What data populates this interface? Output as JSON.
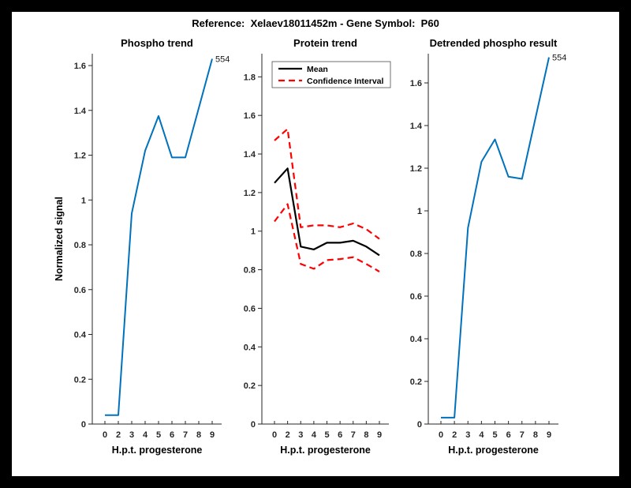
{
  "figure": {
    "title": "Reference:  Xelaev18011452m - Gene Symbol:  P60",
    "border_color": "#000000",
    "background_color": "#ffffff"
  },
  "colors": {
    "matlab_blue": "#0072BD",
    "ci_red": "#FF0000",
    "mean_black": "#000000",
    "axis_gray": "#262626"
  },
  "chart_data": [
    {
      "type": "line",
      "title": "Phospho trend",
      "xlabel": "H.p.t. progesterone",
      "ylabel": "Normalized signal",
      "x_ticklabels": [
        "0",
        "2",
        "3",
        "4",
        "5",
        "6",
        "7",
        "8",
        "9"
      ],
      "y_ticks": [
        0,
        0.2,
        0.4,
        0.6,
        0.8,
        1,
        1.2,
        1.4,
        1.6
      ],
      "y_tick_labels": [
        "0",
        "0.2",
        "0.4",
        "0.6",
        "0.8",
        "1",
        "1.2",
        "1.4",
        "1.6"
      ],
      "ylim": [
        0,
        1.653
      ],
      "grid": false,
      "annotation": {
        "text": "554",
        "at_last_point": true
      },
      "series": [
        {
          "name": "phospho-signal",
          "color": "#0072BD",
          "style": "solid",
          "width": 2,
          "values": [
            0.04,
            0.04,
            0.94,
            1.22,
            1.375,
            1.19,
            1.19,
            1.41,
            1.63
          ]
        }
      ]
    },
    {
      "type": "line",
      "title": "Protein trend",
      "xlabel": "H.p.t. progesterone",
      "ylabel": "",
      "x_ticklabels": [
        "0",
        "2",
        "3",
        "4",
        "5",
        "6",
        "7",
        "8",
        "9"
      ],
      "y_ticks": [
        0,
        0.2,
        0.4,
        0.6,
        0.8,
        1,
        1.2,
        1.4,
        1.6,
        1.8
      ],
      "y_tick_labels": [
        "0",
        "0.2",
        "0.4",
        "0.6",
        "0.8",
        "1",
        "1.2",
        "1.4",
        "1.6",
        "1.8"
      ],
      "ylim": [
        0,
        1.92
      ],
      "grid": false,
      "legend": {
        "position": "top-left",
        "entries": [
          {
            "label": "Mean",
            "color": "#000000",
            "style": "solid"
          },
          {
            "label": "Confidence Interval",
            "color": "#FF0000",
            "style": "dashed"
          }
        ]
      },
      "series": [
        {
          "name": "ci-upper",
          "color": "#FF0000",
          "style": "dashed",
          "width": 2.2,
          "values": [
            1.47,
            1.53,
            1.02,
            1.03,
            1.03,
            1.02,
            1.04,
            1.01,
            0.96
          ]
        },
        {
          "name": "ci-lower",
          "color": "#FF0000",
          "style": "dashed",
          "width": 2.2,
          "values": [
            1.05,
            1.14,
            0.83,
            0.805,
            0.85,
            0.855,
            0.865,
            0.83,
            0.79
          ]
        },
        {
          "name": "mean",
          "color": "#000000",
          "style": "solid",
          "width": 2.2,
          "values": [
            1.25,
            1.325,
            0.92,
            0.905,
            0.94,
            0.94,
            0.95,
            0.92,
            0.875
          ]
        }
      ]
    },
    {
      "type": "line",
      "title": "Detrended phospho result",
      "xlabel": "H.p.t. progesterone",
      "ylabel": "",
      "x_ticklabels": [
        "0",
        "2",
        "3",
        "4",
        "5",
        "6",
        "7",
        "8",
        "9"
      ],
      "y_ticks": [
        0,
        0.2,
        0.4,
        0.6,
        0.8,
        1,
        1.2,
        1.4,
        1.6
      ],
      "y_tick_labels": [
        "0",
        "0.2",
        "0.4",
        "0.6",
        "0.8",
        "1",
        "1.2",
        "1.4",
        "1.6"
      ],
      "ylim": [
        0,
        1.737
      ],
      "grid": false,
      "annotation": {
        "text": "554",
        "at_last_point": true
      },
      "series": [
        {
          "name": "detrended-phospho-signal",
          "color": "#0072BD",
          "style": "solid",
          "width": 2,
          "values": [
            0.03,
            0.03,
            0.92,
            1.23,
            1.335,
            1.16,
            1.15,
            1.435,
            1.72
          ]
        }
      ]
    }
  ]
}
